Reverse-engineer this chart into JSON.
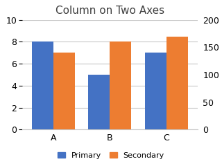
{
  "title": "Column on Two Axes",
  "categories": [
    "A",
    "B",
    "C"
  ],
  "primary_values": [
    8,
    5,
    7
  ],
  "secondary_values": [
    140,
    160,
    170
  ],
  "primary_color": "#4472C4",
  "secondary_color": "#ED7D31",
  "primary_label": "Primary",
  "secondary_label": "Secondary",
  "primary_ylim": [
    0,
    10
  ],
  "secondary_ylim": [
    0,
    200
  ],
  "primary_yticks": [
    0,
    2,
    4,
    6,
    8,
    10
  ],
  "secondary_yticks": [
    0,
    50,
    100,
    150,
    200
  ],
  "background_color": "#ffffff",
  "title_fontsize": 11,
  "bar_width": 0.38,
  "grid_color": "#c8c8c8",
  "fig_bg": "#f2f2f2"
}
